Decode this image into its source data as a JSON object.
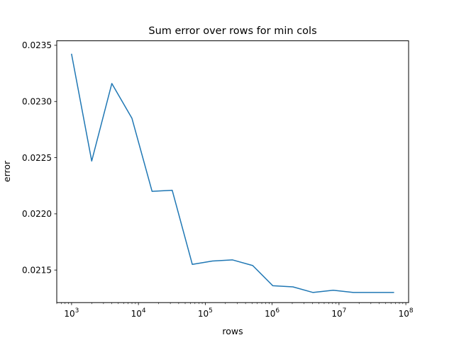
{
  "chart_data": {
    "type": "line",
    "title": "Sum error over rows for min cols",
    "xlabel": "rows",
    "ylabel": "error",
    "x_scale": "log",
    "xlim": [
      600,
      110000000
    ],
    "ylim": [
      0.02121,
      0.02354
    ],
    "grid": false,
    "x_ticks": [
      {
        "value": 1000,
        "base": "10",
        "exp": "3"
      },
      {
        "value": 10000,
        "base": "10",
        "exp": "4"
      },
      {
        "value": 100000,
        "base": "10",
        "exp": "5"
      },
      {
        "value": 1000000,
        "base": "10",
        "exp": "6"
      },
      {
        "value": 10000000,
        "base": "10",
        "exp": "7"
      },
      {
        "value": 100000000,
        "base": "10",
        "exp": "8"
      }
    ],
    "y_ticks": [
      {
        "value": 0.0215,
        "label": "0.0215"
      },
      {
        "value": 0.022,
        "label": "0.0220"
      },
      {
        "value": 0.0225,
        "label": "0.0225"
      },
      {
        "value": 0.023,
        "label": "0.0230"
      },
      {
        "value": 0.0235,
        "label": "0.0235"
      }
    ],
    "series": [
      {
        "color": "#1f77b4",
        "x": [
          1000,
          2000,
          4000,
          8000,
          16000,
          32000,
          64000,
          128000,
          256000,
          512000,
          1024000,
          2048000,
          4096000,
          8192000,
          16384000,
          32768000,
          65536000
        ],
        "y": [
          0.02342,
          0.02247,
          0.02316,
          0.02285,
          0.0222,
          0.02221,
          0.02155,
          0.02158,
          0.02159,
          0.02154,
          0.02136,
          0.02135,
          0.0213,
          0.02132,
          0.0213,
          0.0213,
          0.0213
        ]
      }
    ]
  }
}
